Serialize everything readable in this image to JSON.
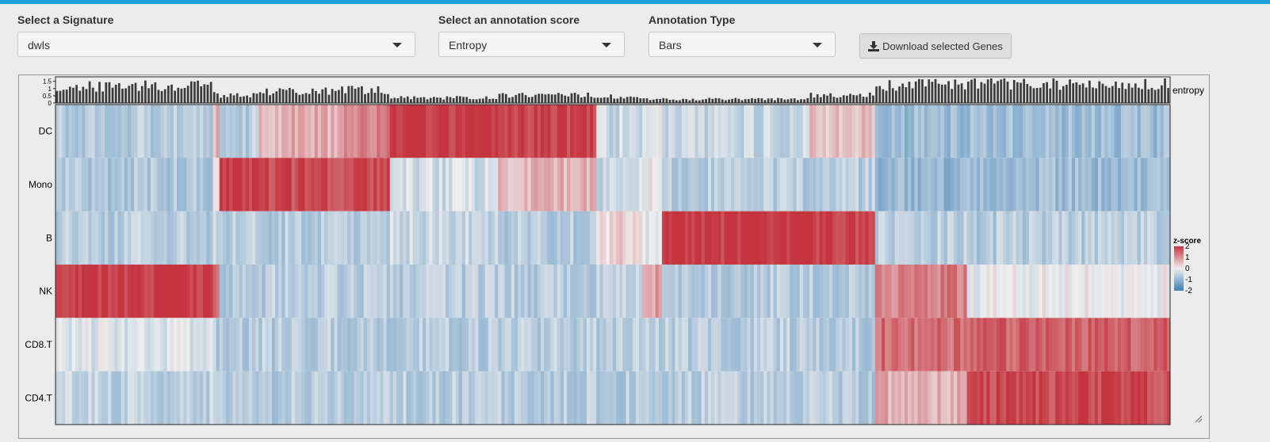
{
  "controls": {
    "signature": {
      "label": "Select a Signature",
      "value": "dwls"
    },
    "annotation_score": {
      "label": "Select an annotation score",
      "value": "Entropy"
    },
    "annotation_type": {
      "label": "Annotation Type",
      "value": "Bars"
    },
    "download": {
      "label": "Download selected Genes",
      "icon": "download-icon"
    }
  },
  "colors": {
    "accent_bar": "#1aa3dc",
    "high": "#c5353f",
    "mid": "#eeeeee",
    "low": "#3d7fb6",
    "entropy_bar": "#3c3c3c"
  },
  "chart_data": {
    "type": "heatmap",
    "rows": [
      "DC",
      "Mono",
      "B",
      "NK",
      "CD8.T",
      "CD4.T"
    ],
    "annotation": {
      "name": "entropy",
      "type": "bars",
      "ticks": [
        "1.5",
        "1",
        "0.5",
        "0"
      ],
      "ylim": [
        0,
        1.7
      ]
    },
    "legend": {
      "title": "z-score",
      "ticks": [
        "2",
        "1",
        "0",
        "-1",
        "-2"
      ],
      "range": [
        -2,
        2
      ],
      "placement": "right"
    },
    "n_columns": 340,
    "segments": [
      {
        "cols": 48,
        "values": {
          "DC": -0.6,
          "Mono": -0.7,
          "B": -0.6,
          "NK": 2.0,
          "CD8.T": -0.2,
          "CD4.T": -0.5
        },
        "entropy": 1.3
      },
      {
        "cols": 2,
        "values": {
          "DC": 0.6,
          "Mono": 0.5,
          "B": -0.5,
          "NK": 1.2,
          "CD8.T": -0.6,
          "CD4.T": -0.6
        },
        "entropy": 0.8
      },
      {
        "cols": 12,
        "values": {
          "DC": -0.6,
          "Mono": 2.0,
          "B": -0.6,
          "NK": -0.6,
          "CD8.T": -0.6,
          "CD4.T": -0.6
        },
        "entropy": 0.6
      },
      {
        "cols": 25,
        "values": {
          "DC": 0.7,
          "Mono": 1.8,
          "B": -0.6,
          "NK": -0.6,
          "CD8.T": -0.6,
          "CD4.T": -0.6
        },
        "entropy": 0.9
      },
      {
        "cols": 15,
        "values": {
          "DC": 1.2,
          "Mono": 1.7,
          "B": -0.6,
          "NK": -0.6,
          "CD8.T": -0.6,
          "CD4.T": -0.6
        },
        "entropy": 1.0
      },
      {
        "cols": 33,
        "values": {
          "DC": 2.0,
          "Mono": -0.3,
          "B": -0.4,
          "NK": -0.6,
          "CD8.T": -0.6,
          "CD4.T": -0.6
        },
        "entropy": 0.4
      },
      {
        "cols": 30,
        "values": {
          "DC": 1.9,
          "Mono": 0.6,
          "B": -0.6,
          "NK": -0.6,
          "CD8.T": -0.6,
          "CD4.T": -0.6
        },
        "entropy": 0.6
      },
      {
        "cols": 14,
        "values": {
          "DC": -0.4,
          "Mono": -0.4,
          "B": 0.3,
          "NK": -0.5,
          "CD8.T": -0.6,
          "CD4.T": -0.6
        },
        "entropy": 0.5
      },
      {
        "cols": 6,
        "values": {
          "DC": 0.0,
          "Mono": 0.0,
          "B": -0.1,
          "NK": 0.8,
          "CD8.T": -0.6,
          "CD4.T": -0.6
        },
        "entropy": 0.3
      },
      {
        "cols": 45,
        "values": {
          "DC": -0.4,
          "Mono": -0.6,
          "B": 2.0,
          "NK": -0.6,
          "CD8.T": -0.6,
          "CD4.T": -0.6
        },
        "entropy": 0.3
      },
      {
        "cols": 20,
        "values": {
          "DC": 0.5,
          "Mono": -0.6,
          "B": 1.9,
          "NK": -0.6,
          "CD8.T": -0.6,
          "CD4.T": -0.6
        },
        "entropy": 0.6
      },
      {
        "cols": 28,
        "values": {
          "DC": -0.9,
          "Mono": -1.0,
          "B": -0.6,
          "NK": 1.2,
          "CD8.T": 1.4,
          "CD4.T": 0.7
        },
        "entropy": 1.4
      },
      {
        "cols": 62,
        "values": {
          "DC": -0.9,
          "Mono": -0.9,
          "B": -0.6,
          "NK": 0.0,
          "CD8.T": 1.5,
          "CD4.T": 1.8
        },
        "entropy": 1.5
      }
    ]
  }
}
